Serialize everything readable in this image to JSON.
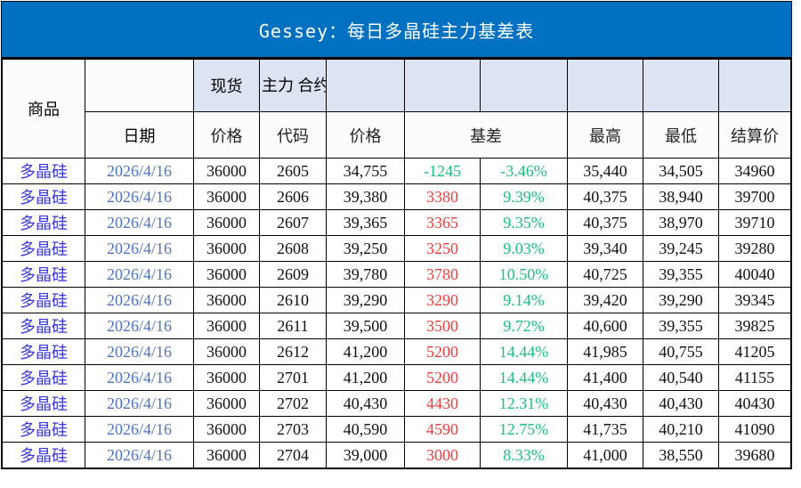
{
  "title": "Gessey：每日多晶硅主力基差表",
  "colors": {
    "banner_bg": "#0070C0",
    "banner_text": "#FFFFFF",
    "header_shaded_bg": "#DCE4F2",
    "header_plain_bg": "#FAFCFE",
    "row_bg": "#FFFFFF",
    "border": "#000000",
    "commodity_text": "#3838E0",
    "date_text": "#4E73C4",
    "basis_positive_red": "#F03B3B",
    "basis_negative_green": "#1CBE7D",
    "percent_green": "#1CBE7D",
    "number_text": "#111111"
  },
  "header": {
    "commodity": "商品",
    "date": "日期",
    "spot": "现货",
    "main_contract": "主力\n合约",
    "spot_price": "价格",
    "code": "代码",
    "futures_price": "价格",
    "basis": "基差",
    "high": "最高",
    "low": "最低",
    "settlement": "结算价"
  },
  "rows": [
    {
      "commodity": "多晶硅",
      "date": "2026/4/16",
      "spot_price": "36000",
      "code": "2605",
      "price": "34,755",
      "basis": "-1245",
      "basis_pct": "-3.46%",
      "high": "35,440",
      "low": "34,505",
      "settle": "34960"
    },
    {
      "commodity": "多晶硅",
      "date": "2026/4/16",
      "spot_price": "36000",
      "code": "2606",
      "price": "39,380",
      "basis": "3380",
      "basis_pct": "9.39%",
      "high": "40,375",
      "low": "38,940",
      "settle": "39700"
    },
    {
      "commodity": "多晶硅",
      "date": "2026/4/16",
      "spot_price": "36000",
      "code": "2607",
      "price": "39,365",
      "basis": "3365",
      "basis_pct": "9.35%",
      "high": "40,375",
      "low": "38,970",
      "settle": "39710"
    },
    {
      "commodity": "多晶硅",
      "date": "2026/4/16",
      "spot_price": "36000",
      "code": "2608",
      "price": "39,250",
      "basis": "3250",
      "basis_pct": "9.03%",
      "high": "39,340",
      "low": "39,245",
      "settle": "39280"
    },
    {
      "commodity": "多晶硅",
      "date": "2026/4/16",
      "spot_price": "36000",
      "code": "2609",
      "price": "39,780",
      "basis": "3780",
      "basis_pct": "10.50%",
      "high": "40,725",
      "low": "39,355",
      "settle": "40040"
    },
    {
      "commodity": "多晶硅",
      "date": "2026/4/16",
      "spot_price": "36000",
      "code": "2610",
      "price": "39,290",
      "basis": "3290",
      "basis_pct": "9.14%",
      "high": "39,420",
      "low": "39,290",
      "settle": "39345"
    },
    {
      "commodity": "多晶硅",
      "date": "2026/4/16",
      "spot_price": "36000",
      "code": "2611",
      "price": "39,500",
      "basis": "3500",
      "basis_pct": "9.72%",
      "high": "40,600",
      "low": "39,355",
      "settle": "39825"
    },
    {
      "commodity": "多晶硅",
      "date": "2026/4/16",
      "spot_price": "36000",
      "code": "2612",
      "price": "41,200",
      "basis": "5200",
      "basis_pct": "14.44%",
      "high": "41,985",
      "low": "40,755",
      "settle": "41205"
    },
    {
      "commodity": "多晶硅",
      "date": "2026/4/16",
      "spot_price": "36000",
      "code": "2701",
      "price": "41,200",
      "basis": "5200",
      "basis_pct": "14.44%",
      "high": "41,400",
      "low": "40,540",
      "settle": "41155"
    },
    {
      "commodity": "多晶硅",
      "date": "2026/4/16",
      "spot_price": "36000",
      "code": "2702",
      "price": "40,430",
      "basis": "4430",
      "basis_pct": "12.31%",
      "high": "40,430",
      "low": "40,430",
      "settle": "40430"
    },
    {
      "commodity": "多晶硅",
      "date": "2026/4/16",
      "spot_price": "36000",
      "code": "2703",
      "price": "40,590",
      "basis": "4590",
      "basis_pct": "12.75%",
      "high": "41,735",
      "low": "40,210",
      "settle": "41090"
    },
    {
      "commodity": "多晶硅",
      "date": "2026/4/16",
      "spot_price": "36000",
      "code": "2704",
      "price": "39,000",
      "basis": "3000",
      "basis_pct": "8.33%",
      "high": "41,000",
      "low": "38,550",
      "settle": "39680"
    }
  ]
}
